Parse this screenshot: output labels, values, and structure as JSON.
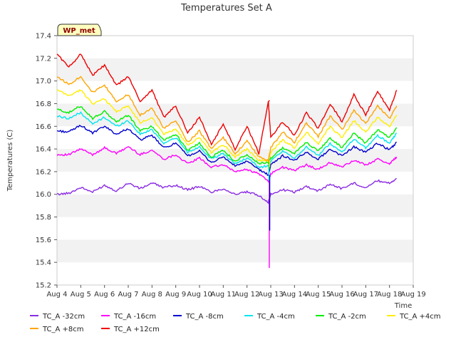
{
  "chart_data": {
    "type": "line",
    "title": "Temperatures Set A",
    "xlabel": "Time",
    "ylabel": "Temperatures (C)",
    "badge": "WP_met",
    "x_ticks": [
      "Aug 4",
      "Aug 5",
      "Aug 6",
      "Aug 7",
      "Aug 8",
      "Aug 9",
      "Aug 10",
      "Aug 11",
      "Aug 12",
      "Aug 13",
      "Aug 14",
      "Aug 15",
      "Aug 16",
      "Aug 17",
      "Aug 18",
      "Aug 19"
    ],
    "xlim": [
      4,
      19
    ],
    "ylim": [
      15.2,
      17.4
    ],
    "y_ticks": [
      "15.2",
      "15.4",
      "15.6",
      "15.8",
      "16.0",
      "16.2",
      "16.4",
      "16.6",
      "16.8",
      "17.0",
      "17.2",
      "17.4"
    ],
    "x_days": [
      4.0,
      4.5,
      5.0,
      5.5,
      6.0,
      6.5,
      7.0,
      7.5,
      8.0,
      8.5,
      9.0,
      9.5,
      10.0,
      10.5,
      11.0,
      11.5,
      12.0,
      12.5,
      12.9,
      13.0,
      13.5,
      14.0,
      14.5,
      15.0,
      15.5,
      16.0,
      16.5,
      17.0,
      17.5,
      18.0,
      18.3
    ],
    "series": [
      {
        "name": "TC_A -32cm",
        "color": "#8a2be2",
        "values": [
          16.0,
          16.01,
          16.06,
          16.02,
          16.08,
          16.03,
          16.1,
          16.05,
          16.1,
          16.06,
          16.08,
          16.04,
          16.07,
          16.02,
          16.05,
          16.0,
          16.02,
          15.99,
          15.93,
          16.0,
          16.04,
          16.02,
          16.07,
          16.03,
          16.09,
          16.05,
          16.1,
          16.06,
          16.12,
          16.1,
          16.14
        ]
      },
      {
        "name": "TC_A -16cm",
        "color": "#ff00ff",
        "values": [
          16.35,
          16.35,
          16.4,
          16.35,
          16.41,
          16.36,
          16.42,
          16.35,
          16.39,
          16.31,
          16.35,
          16.27,
          16.32,
          16.24,
          16.26,
          16.2,
          16.22,
          16.18,
          16.12,
          16.18,
          16.24,
          16.21,
          16.26,
          16.22,
          16.28,
          16.24,
          16.3,
          16.26,
          16.31,
          16.27,
          16.33
        ]
      },
      {
        "name": "TC_A -8cm",
        "color": "#0000cd",
        "values": [
          16.56,
          16.55,
          16.61,
          16.54,
          16.6,
          16.53,
          16.58,
          16.48,
          16.52,
          16.41,
          16.45,
          16.34,
          16.38,
          16.28,
          16.33,
          16.25,
          16.29,
          16.22,
          16.17,
          16.26,
          16.34,
          16.3,
          16.37,
          16.31,
          16.4,
          16.34,
          16.42,
          16.37,
          16.45,
          16.39,
          16.46
        ]
      },
      {
        "name": "TC_A -4cm",
        "color": "#00e5ee",
        "values": [
          16.69,
          16.67,
          16.72,
          16.62,
          16.68,
          16.6,
          16.65,
          16.53,
          16.57,
          16.45,
          16.5,
          16.37,
          16.42,
          16.31,
          16.36,
          16.27,
          16.32,
          16.24,
          16.25,
          16.29,
          16.38,
          16.32,
          16.42,
          16.34,
          16.45,
          16.37,
          16.49,
          16.41,
          16.52,
          16.45,
          16.54
        ]
      },
      {
        "name": "TC_A -2cm",
        "color": "#00ee00",
        "values": [
          16.75,
          16.72,
          16.78,
          16.67,
          16.73,
          16.64,
          16.7,
          16.56,
          16.6,
          16.48,
          16.53,
          16.39,
          16.45,
          16.33,
          16.39,
          16.29,
          16.35,
          16.27,
          16.28,
          16.32,
          16.41,
          16.36,
          16.46,
          16.38,
          16.5,
          16.41,
          16.54,
          16.45,
          16.57,
          16.5,
          16.59
        ]
      },
      {
        "name": "TC_A +4cm",
        "color": "#ffee00",
        "values": [
          16.92,
          16.87,
          16.92,
          16.8,
          16.84,
          16.73,
          16.78,
          16.63,
          16.68,
          16.53,
          16.58,
          16.43,
          16.5,
          16.37,
          16.44,
          16.33,
          16.4,
          16.3,
          16.3,
          16.37,
          16.48,
          16.41,
          16.55,
          16.45,
          16.6,
          16.5,
          16.65,
          16.55,
          16.68,
          16.6,
          16.7
        ]
      },
      {
        "name": "TC_A +8cm",
        "color": "#ffa500",
        "values": [
          17.04,
          16.97,
          17.04,
          16.9,
          16.96,
          16.82,
          16.88,
          16.7,
          16.76,
          16.58,
          16.65,
          16.46,
          16.56,
          16.4,
          16.5,
          16.36,
          16.47,
          16.33,
          16.3,
          16.41,
          16.55,
          16.46,
          16.63,
          16.51,
          16.69,
          16.57,
          16.74,
          16.62,
          16.78,
          16.67,
          16.78
        ]
      },
      {
        "name": "TC_A +12cm",
        "color": "#ee0000",
        "values": [
          17.24,
          17.12,
          17.24,
          17.05,
          17.14,
          16.96,
          17.04,
          16.82,
          16.92,
          16.68,
          16.78,
          16.54,
          16.68,
          16.44,
          16.62,
          16.4,
          16.6,
          16.36,
          16.82,
          16.5,
          16.64,
          16.52,
          16.72,
          16.58,
          16.8,
          16.64,
          16.88,
          16.7,
          16.91,
          16.74,
          16.92
        ]
      }
    ],
    "dip": {
      "x": 12.92,
      "values": [
        15.93,
        15.35,
        15.68,
        16.12,
        16.22,
        16.24,
        16.28,
        16.83
      ]
    },
    "legend_position": "bottom",
    "grid": "horizontal-bands"
  }
}
